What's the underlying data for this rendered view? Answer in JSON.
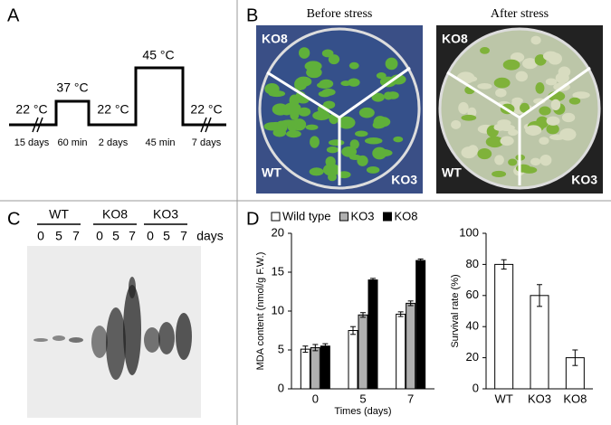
{
  "panels": {
    "A": {
      "label": "A",
      "temperatures": [
        "22 °C",
        "37 °C",
        "22 °C",
        "45 °C",
        "22 °C"
      ],
      "durations": [
        "15 days",
        "60 min",
        "2 days",
        "45 min",
        "7 days"
      ]
    },
    "B": {
      "label": "B",
      "plates": [
        {
          "title": "Before stress",
          "labels": [
            "KO8",
            "WT",
            "KO3"
          ]
        },
        {
          "title": "After stress",
          "labels": [
            "KO8",
            "WT",
            "KO3"
          ]
        }
      ]
    },
    "C": {
      "label": "C",
      "groups": [
        "WT",
        "KO8",
        "KO3"
      ],
      "lanes": [
        "0",
        "5",
        "7",
        "0",
        "5",
        "7",
        "0",
        "5",
        "7"
      ],
      "unit": "days"
    },
    "D": {
      "label": "D"
    }
  },
  "chart_data": [
    {
      "type": "bar",
      "y_label": "MDA content (nmol/g F.W.)",
      "x_label": "Times (days)",
      "categories": [
        "0",
        "5",
        "7"
      ],
      "series": [
        {
          "name": "Wild type",
          "color": "#ffffff",
          "values": [
            5.1,
            7.5,
            9.6
          ],
          "errors": [
            0.4,
            0.5,
            0.3
          ]
        },
        {
          "name": "KO3",
          "color": "#b0b0b0",
          "values": [
            5.3,
            9.5,
            11.0
          ],
          "errors": [
            0.4,
            0.3,
            0.3
          ]
        },
        {
          "name": "KO8",
          "color": "#000000",
          "values": [
            5.5,
            14.0,
            16.5
          ],
          "errors": [
            0.3,
            0.2,
            0.2
          ]
        }
      ],
      "ylim": [
        0,
        20
      ],
      "yticks": [
        0,
        5,
        10,
        15,
        20
      ],
      "legend": "top"
    },
    {
      "type": "bar",
      "y_label": "Survival rate (%)",
      "categories": [
        "WT",
        "KO3",
        "KO8"
      ],
      "values": [
        80,
        60,
        20
      ],
      "errors": [
        3,
        7,
        5
      ],
      "color": "#ffffff",
      "ylim": [
        0,
        100
      ],
      "yticks": [
        0,
        20,
        40,
        60,
        80,
        100
      ]
    }
  ]
}
